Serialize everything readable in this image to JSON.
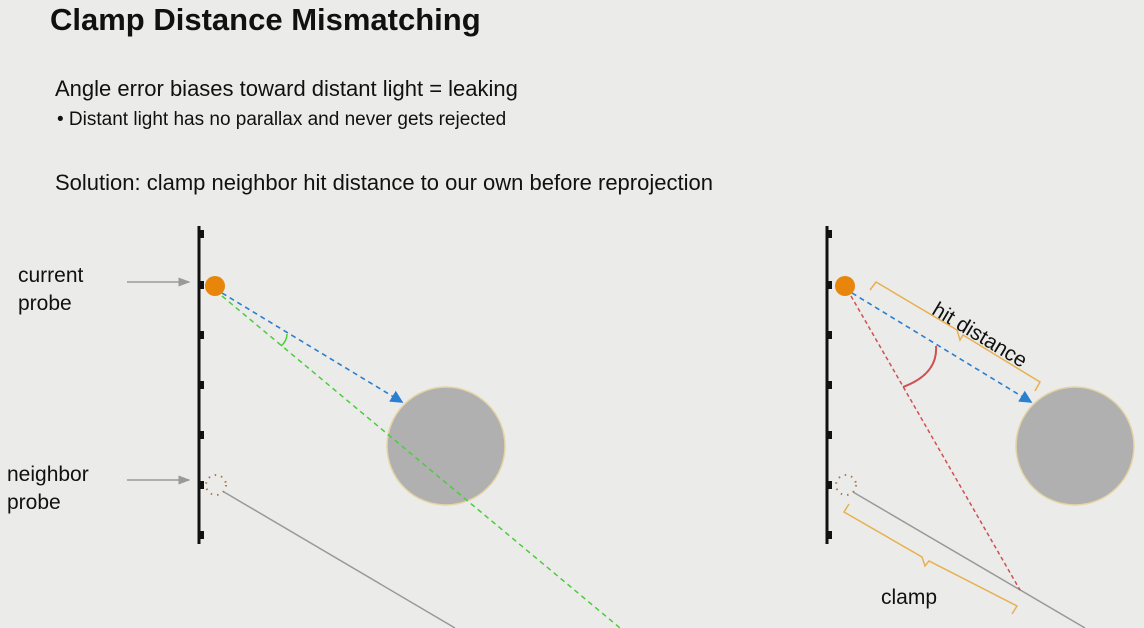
{
  "slide": {
    "title": "Clamp Distance Mismatching",
    "points": [
      "Angle error biases toward distant light = leaking",
      "•  Distant light has no parallax and never gets rejected",
      "Solution: clamp neighbor hit distance to our own before reprojection"
    ]
  },
  "diagram": {
    "left": {
      "current_label": [
        "current",
        "probe"
      ],
      "neighbor_label": [
        "neighbor",
        "probe"
      ]
    },
    "right": {
      "hit_distance_label": "hit distance",
      "clamp_label": "clamp"
    },
    "colors": {
      "probe": "#e8860c",
      "ray_blue": "#2a7fd0",
      "ray_green": "#4ccc3c",
      "ray_red": "#d05050",
      "sphere": "#b0b0b0",
      "bracket": "#e8b050"
    }
  }
}
